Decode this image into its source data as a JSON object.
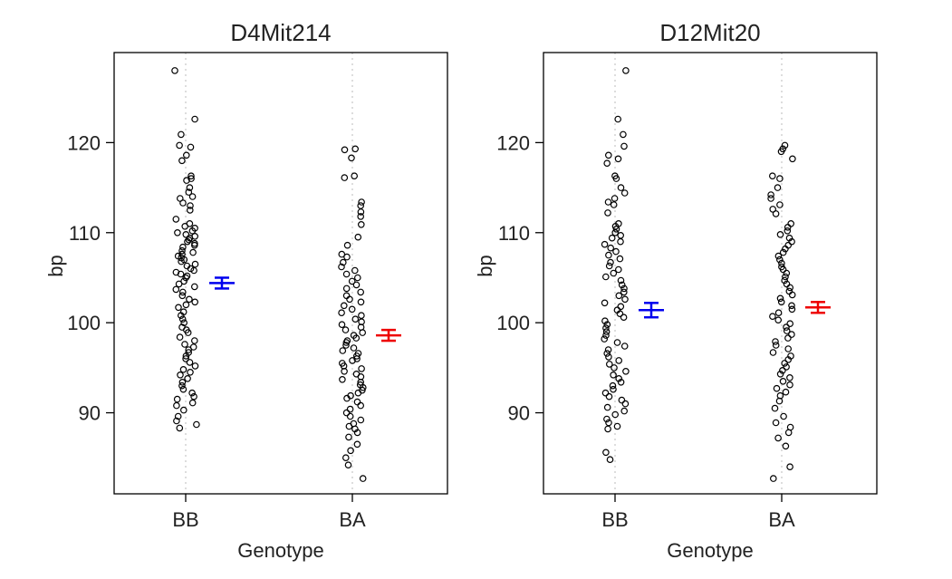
{
  "chart_data": [
    {
      "type": "scatter",
      "title": "D4Mit214",
      "xlabel": "Genotype",
      "ylabel": "bp",
      "categories": [
        "BB",
        "BA"
      ],
      "yticks": [
        90,
        100,
        110,
        120
      ],
      "ylim": [
        81,
        130
      ],
      "grid": "vertical dotted guide at each genotype",
      "series": [
        {
          "category": "BB",
          "color": "#0000ee",
          "mean": 104.4,
          "se": 0.6,
          "points": [
            128.0,
            122.6,
            120.9,
            119.7,
            119.5,
            118.6,
            118.0,
            116.3,
            116.0,
            115.8,
            115.0,
            114.5,
            114.0,
            113.8,
            113.3,
            113.0,
            112.5,
            111.5,
            111.0,
            110.7,
            110.5,
            110.2,
            110.0,
            109.8,
            109.6,
            109.4,
            109.2,
            109.0,
            108.8,
            108.6,
            108.4,
            108.0,
            107.8,
            107.6,
            107.4,
            107.2,
            107.0,
            106.8,
            106.5,
            106.3,
            106.0,
            105.8,
            105.6,
            105.4,
            105.2,
            105.0,
            104.6,
            104.3,
            104.0,
            103.7,
            103.4,
            103.0,
            102.6,
            102.3,
            102.0,
            101.7,
            101.2,
            100.8,
            100.4,
            100.0,
            99.5,
            99.2,
            98.9,
            98.4,
            98.0,
            97.6,
            97.3,
            97.0,
            96.7,
            96.3,
            96.0,
            95.6,
            95.2,
            94.8,
            94.5,
            94.2,
            93.8,
            93.4,
            93.0,
            92.6,
            92.2,
            91.8,
            91.5,
            91.1,
            90.8,
            90.3,
            89.6,
            89.1,
            88.7,
            88.3
          ]
        },
        {
          "category": "BA",
          "color": "#ee0000",
          "mean": 98.6,
          "se": 0.6,
          "points": [
            119.3,
            119.2,
            118.3,
            116.3,
            116.1,
            113.4,
            113.0,
            112.3,
            111.8,
            110.9,
            109.5,
            108.6,
            107.6,
            107.3,
            106.7,
            106.2,
            105.8,
            105.4,
            105.0,
            104.6,
            104.2,
            103.8,
            103.4,
            103.0,
            102.6,
            102.3,
            101.9,
            101.5,
            101.1,
            100.8,
            100.4,
            100.1,
            99.8,
            99.5,
            99.2,
            98.9,
            98.6,
            98.3,
            98.0,
            97.8,
            97.5,
            97.2,
            96.9,
            96.6,
            96.3,
            96.0,
            95.8,
            95.5,
            95.2,
            94.9,
            94.6,
            94.3,
            94.0,
            93.7,
            93.4,
            93.1,
            92.8,
            92.5,
            92.2,
            91.9,
            91.6,
            91.2,
            90.8,
            90.4,
            90.0,
            89.6,
            89.2,
            88.8,
            88.5,
            88.2,
            87.8,
            87.3,
            86.5,
            85.8,
            85.0,
            84.2,
            82.7
          ]
        }
      ]
    },
    {
      "type": "scatter",
      "title": "D12Mit20",
      "xlabel": "Genotype",
      "ylabel": "bp",
      "categories": [
        "BB",
        "BA"
      ],
      "yticks": [
        90,
        100,
        110,
        120
      ],
      "ylim": [
        81,
        130
      ],
      "grid": "vertical dotted guide at each genotype",
      "series": [
        {
          "category": "BB",
          "color": "#0000ee",
          "mean": 101.4,
          "se": 0.8,
          "points": [
            128.0,
            122.6,
            120.9,
            119.6,
            118.6,
            118.2,
            117.7,
            116.3,
            116.0,
            115.0,
            114.4,
            113.8,
            113.4,
            113.1,
            112.2,
            111.0,
            110.7,
            110.4,
            110.0,
            109.7,
            109.4,
            109.0,
            108.7,
            108.3,
            107.9,
            107.5,
            107.1,
            106.7,
            106.3,
            105.9,
            105.5,
            105.1,
            104.7,
            104.2,
            103.8,
            103.4,
            103.0,
            102.6,
            102.2,
            101.8,
            101.4,
            101.0,
            100.6,
            100.2,
            99.8,
            99.4,
            99.0,
            98.6,
            98.2,
            97.8,
            97.4,
            97.0,
            96.6,
            96.2,
            95.8,
            95.4,
            95.0,
            94.6,
            94.2,
            93.8,
            93.4,
            93.0,
            92.6,
            92.2,
            91.8,
            91.4,
            91.0,
            90.6,
            90.2,
            89.8,
            89.3,
            88.9,
            88.5,
            88.2,
            85.6,
            84.8
          ]
        },
        {
          "category": "BA",
          "color": "#ee0000",
          "mean": 101.7,
          "se": 0.6,
          "points": [
            119.7,
            119.3,
            119.0,
            118.2,
            116.3,
            116.0,
            115.0,
            114.2,
            113.8,
            113.1,
            112.6,
            112.1,
            111.0,
            110.6,
            110.2,
            109.8,
            109.4,
            109.0,
            108.6,
            108.2,
            107.8,
            107.4,
            107.0,
            106.6,
            106.2,
            105.9,
            105.5,
            105.1,
            104.7,
            104.3,
            103.9,
            103.5,
            103.1,
            102.7,
            102.3,
            101.9,
            101.5,
            101.1,
            100.7,
            100.3,
            99.9,
            99.5,
            99.1,
            98.7,
            98.3,
            97.9,
            97.5,
            97.1,
            96.7,
            96.3,
            95.9,
            95.5,
            95.1,
            94.7,
            94.3,
            93.9,
            93.5,
            93.1,
            92.7,
            92.3,
            91.9,
            91.3,
            90.5,
            89.6,
            88.9,
            88.4,
            87.8,
            87.2,
            86.3,
            84.0,
            82.7
          ]
        }
      ]
    }
  ]
}
